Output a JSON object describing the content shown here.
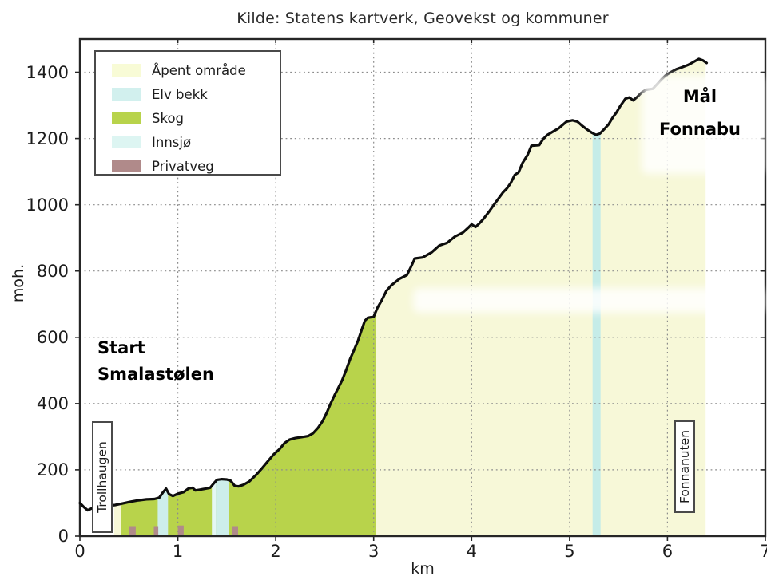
{
  "title": "Kilde: Statens kartverk, Geovekst og kommuner",
  "axes": {
    "x_label": "km",
    "y_label": "moh.",
    "x_ticks": [
      0,
      1,
      2,
      3,
      4,
      5,
      6,
      7
    ],
    "y_ticks": [
      0,
      200,
      400,
      600,
      800,
      1000,
      1200,
      1400
    ]
  },
  "legend": {
    "entries": [
      {
        "label": "Åpent område",
        "color": "#f8fbd6"
      },
      {
        "label": "Elv bekk",
        "color": "#d2f0ee"
      },
      {
        "label": "Skog",
        "color": "#b8d34b"
      },
      {
        "label": "Innsjø",
        "color": "#ddf5f2"
      },
      {
        "label": "Privatveg",
        "color": "#b08a8a"
      }
    ]
  },
  "annotations": {
    "start": {
      "line1": "Start",
      "line2": "Smalastølen"
    },
    "goal": {
      "line1": "Mål",
      "line2": "Fonnabu"
    }
  },
  "markers": [
    {
      "label": "Trollhaugen",
      "km": 0.23
    },
    {
      "label": "Fonnanuten",
      "km": 6.17
    }
  ],
  "chart_data": {
    "type": "area",
    "title": "Kilde: Statens kartverk, Geovekst og kommuner",
    "xlabel": "km",
    "ylabel": "moh.",
    "xlim": [
      0,
      7
    ],
    "ylim": [
      0,
      1500
    ],
    "grid": true,
    "legend_position": "upper left",
    "colors": {
      "curve": "#0d0d0d",
      "frame": "#262626",
      "grid": "#8c8c8c",
      "skog": "#b8d34b",
      "apent": "#f7f8d8",
      "elv": "#cdeeea",
      "elv_light": "#e4f7f4",
      "privatveg": "#b08a8a"
    },
    "zones": [
      {
        "name": "apent-start",
        "from": 0.35,
        "to": 0.42,
        "color": "#f7f8d8"
      },
      {
        "name": "skog",
        "from": 0.42,
        "to": 3.02,
        "color": "#b8d34b"
      },
      {
        "name": "apent",
        "from": 3.02,
        "to": 6.39,
        "color": "#f7f8d8"
      }
    ],
    "stripes": [
      {
        "name": "elv-1",
        "from": 0.795,
        "to": 0.9,
        "color": "#cdeeea"
      },
      {
        "name": "innsjo-1",
        "from": 1.348,
        "to": 1.388,
        "color": "#e4f7f4"
      },
      {
        "name": "elv-2",
        "from": 1.388,
        "to": 1.525,
        "color": "#cdeeea"
      },
      {
        "name": "elv-3",
        "from": 5.235,
        "to": 5.317,
        "color": "#c5ece8"
      }
    ],
    "private_roads": [
      {
        "from": 0.5,
        "to": 0.57,
        "height_m": 30
      },
      {
        "from": 0.755,
        "to": 0.8,
        "height_m": 30
      },
      {
        "from": 1.0,
        "to": 1.06,
        "height_m": 32
      },
      {
        "from": 1.555,
        "to": 1.615,
        "height_m": 30
      }
    ],
    "profile": [
      [
        0.0,
        100
      ],
      [
        0.04,
        88
      ],
      [
        0.08,
        78
      ],
      [
        0.13,
        85
      ],
      [
        0.2,
        90
      ],
      [
        0.28,
        91
      ],
      [
        0.36,
        94
      ],
      [
        0.44,
        99
      ],
      [
        0.52,
        104
      ],
      [
        0.6,
        108
      ],
      [
        0.68,
        111
      ],
      [
        0.76,
        112
      ],
      [
        0.81,
        116
      ],
      [
        0.85,
        133
      ],
      [
        0.88,
        143
      ],
      [
        0.91,
        127
      ],
      [
        0.95,
        121
      ],
      [
        1.0,
        128
      ],
      [
        1.06,
        133
      ],
      [
        1.11,
        144
      ],
      [
        1.15,
        146
      ],
      [
        1.18,
        138
      ],
      [
        1.22,
        140
      ],
      [
        1.28,
        143
      ],
      [
        1.33,
        146
      ],
      [
        1.37,
        160
      ],
      [
        1.4,
        170
      ],
      [
        1.45,
        172
      ],
      [
        1.5,
        171
      ],
      [
        1.54,
        167
      ],
      [
        1.58,
        152
      ],
      [
        1.62,
        150
      ],
      [
        1.67,
        155
      ],
      [
        1.73,
        165
      ],
      [
        1.8,
        185
      ],
      [
        1.86,
        205
      ],
      [
        1.92,
        226
      ],
      [
        1.98,
        247
      ],
      [
        2.04,
        263
      ],
      [
        2.09,
        281
      ],
      [
        2.14,
        291
      ],
      [
        2.2,
        296
      ],
      [
        2.27,
        299
      ],
      [
        2.33,
        302
      ],
      [
        2.38,
        310
      ],
      [
        2.43,
        326
      ],
      [
        2.48,
        348
      ],
      [
        2.52,
        372
      ],
      [
        2.56,
        400
      ],
      [
        2.6,
        425
      ],
      [
        2.64,
        448
      ],
      [
        2.68,
        472
      ],
      [
        2.72,
        502
      ],
      [
        2.76,
        535
      ],
      [
        2.8,
        562
      ],
      [
        2.84,
        590
      ],
      [
        2.88,
        625
      ],
      [
        2.91,
        650
      ],
      [
        2.94,
        659
      ],
      [
        3.0,
        662
      ],
      [
        3.04,
        690
      ],
      [
        3.08,
        710
      ],
      [
        3.13,
        740
      ],
      [
        3.18,
        757
      ],
      [
        3.26,
        776
      ],
      [
        3.34,
        788
      ],
      [
        3.38,
        812
      ],
      [
        3.42,
        838
      ],
      [
        3.5,
        841
      ],
      [
        3.59,
        856
      ],
      [
        3.67,
        877
      ],
      [
        3.75,
        885
      ],
      [
        3.83,
        904
      ],
      [
        3.91,
        916
      ],
      [
        3.97,
        932
      ],
      [
        4.0,
        941
      ],
      [
        4.04,
        933
      ],
      [
        4.08,
        944
      ],
      [
        4.12,
        957
      ],
      [
        4.18,
        980
      ],
      [
        4.24,
        1005
      ],
      [
        4.32,
        1037
      ],
      [
        4.36,
        1049
      ],
      [
        4.4,
        1066
      ],
      [
        4.44,
        1090
      ],
      [
        4.48,
        1098
      ],
      [
        4.52,
        1126
      ],
      [
        4.57,
        1150
      ],
      [
        4.61,
        1178
      ],
      [
        4.69,
        1180
      ],
      [
        4.73,
        1198
      ],
      [
        4.77,
        1210
      ],
      [
        4.82,
        1219
      ],
      [
        4.89,
        1231
      ],
      [
        4.97,
        1251
      ],
      [
        5.03,
        1255
      ],
      [
        5.08,
        1251
      ],
      [
        5.13,
        1238
      ],
      [
        5.18,
        1227
      ],
      [
        5.23,
        1217
      ],
      [
        5.27,
        1211
      ],
      [
        5.31,
        1215
      ],
      [
        5.35,
        1227
      ],
      [
        5.4,
        1243
      ],
      [
        5.44,
        1263
      ],
      [
        5.48,
        1279
      ],
      [
        5.52,
        1299
      ],
      [
        5.57,
        1320
      ],
      [
        5.61,
        1324
      ],
      [
        5.65,
        1315
      ],
      [
        5.69,
        1325
      ],
      [
        5.73,
        1337
      ],
      [
        5.78,
        1347
      ],
      [
        5.85,
        1350
      ],
      [
        5.9,
        1366
      ],
      [
        5.94,
        1379
      ],
      [
        5.98,
        1390
      ],
      [
        6.02,
        1398
      ],
      [
        6.09,
        1409
      ],
      [
        6.15,
        1415
      ],
      [
        6.21,
        1422
      ],
      [
        6.26,
        1430
      ],
      [
        6.32,
        1440
      ],
      [
        6.36,
        1436
      ],
      [
        6.4,
        1428
      ]
    ]
  }
}
